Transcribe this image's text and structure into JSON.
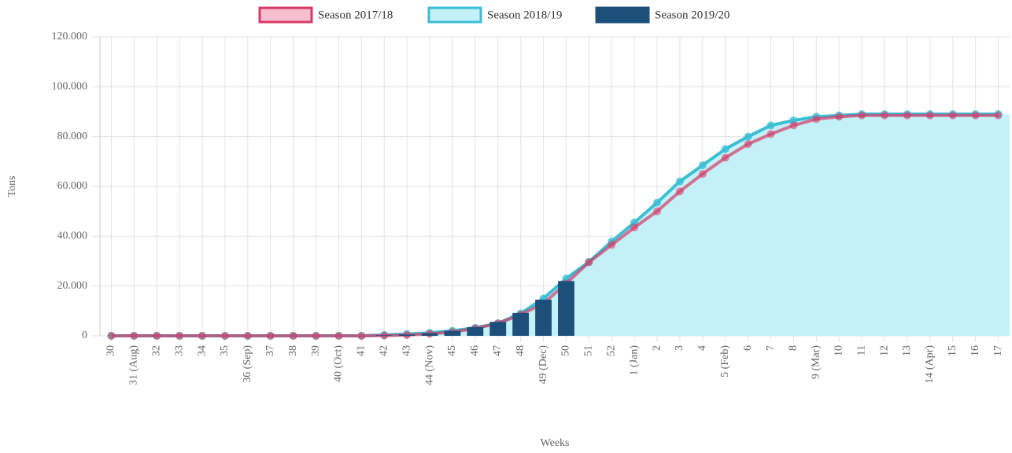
{
  "chart_data": {
    "type": "line",
    "x_label": "Weeks",
    "y_label": "Tons",
    "categories": [
      "30",
      "31 (Aug)",
      "32",
      "33",
      "34",
      "35",
      "36 (Sep)",
      "37",
      "38",
      "39",
      "40 (Oct)",
      "41",
      "42",
      "43",
      "44 (Nov)",
      "45",
      "46",
      "47",
      "48",
      "49 (Dec)",
      "50",
      "51",
      "52",
      "1 (Jan)",
      "2",
      "3",
      "4",
      "5 (Feb)",
      "6",
      "7",
      "8",
      "9 (Mar)",
      "10",
      "11",
      "12",
      "13",
      "14 (Apr)",
      "15",
      "16",
      "17"
    ],
    "ylim": [
      0,
      120000
    ],
    "yticks": [
      0,
      {
        "value": 20000,
        "label": "20.000"
      },
      {
        "value": 40000,
        "label": "40.000"
      },
      {
        "value": 60000,
        "label": "60.000"
      },
      {
        "value": 80000,
        "label": "80.000"
      },
      {
        "value": 100000,
        "label": "100.000"
      },
      {
        "value": 120000,
        "label": "120.000"
      }
    ],
    "grid": true,
    "legend": "top",
    "series": [
      {
        "name": "Season 2018/19",
        "type": "area",
        "color": "#3bbfd4",
        "fill": "#c3f1f7",
        "values": [
          0,
          0,
          0,
          0,
          0,
          0,
          0,
          0,
          0,
          0,
          0,
          0,
          300,
          700,
          1200,
          2000,
          3200,
          5000,
          9000,
          15000,
          23000,
          29700,
          37900,
          45500,
          53500,
          62000,
          68500,
          75000,
          80000,
          84500,
          86500,
          88000,
          88500,
          89000,
          89000,
          89000,
          89000,
          89000,
          89000,
          89000
        ]
      },
      {
        "name": "Season 2017/18",
        "type": "line",
        "color": "#d63a66",
        "fill": "#f5bfd0",
        "values": [
          0,
          0,
          0,
          0,
          0,
          0,
          0,
          0,
          0,
          0,
          0,
          0,
          100,
          300,
          800,
          1500,
          3000,
          5000,
          8500,
          13000,
          21000,
          29500,
          36500,
          43500,
          50000,
          58000,
          65000,
          71500,
          77000,
          81000,
          84500,
          87000,
          88000,
          88500,
          88500,
          88500,
          88500,
          88500,
          88500,
          88500
        ]
      },
      {
        "name": "Season 2019/20",
        "type": "bar",
        "color": "#1c4f7a",
        "fill": "#1c4f7a",
        "values": [
          0,
          0,
          0,
          0,
          0,
          0,
          0,
          0,
          0,
          0,
          0,
          0,
          200,
          500,
          1000,
          2000,
          3500,
          5600,
          9200,
          14500,
          22000,
          null,
          null,
          null,
          null,
          null,
          null,
          null,
          null,
          null,
          null,
          null,
          null,
          null,
          null,
          null,
          null,
          null,
          null,
          null
        ]
      }
    ]
  }
}
